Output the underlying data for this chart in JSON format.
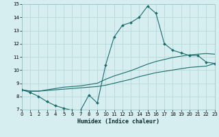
{
  "xlabel": "Humidex (Indice chaleur)",
  "bg_color": "#d6eef0",
  "grid_color": "#b8d8da",
  "line_color": "#1a6b6b",
  "xlim": [
    0,
    23
  ],
  "ylim": [
    7,
    15
  ],
  "yticks": [
    7,
    8,
    9,
    10,
    11,
    12,
    13,
    14,
    15
  ],
  "xticks": [
    0,
    1,
    2,
    3,
    4,
    5,
    6,
    7,
    8,
    9,
    10,
    11,
    12,
    13,
    14,
    15,
    16,
    17,
    18,
    19,
    20,
    21,
    22,
    23
  ],
  "line1_y": [
    8.5,
    8.3,
    8.0,
    7.6,
    7.3,
    7.1,
    6.95,
    6.95,
    8.1,
    7.5,
    10.4,
    12.5,
    13.4,
    13.6,
    14.0,
    14.85,
    14.3,
    12.0,
    11.5,
    11.3,
    11.1,
    11.1,
    10.6,
    10.5
  ],
  "line2_y": [
    8.5,
    8.4,
    8.4,
    8.45,
    8.5,
    8.55,
    8.6,
    8.65,
    8.7,
    8.75,
    8.85,
    9.0,
    9.15,
    9.3,
    9.5,
    9.65,
    9.8,
    9.9,
    10.0,
    10.1,
    10.2,
    10.25,
    10.3,
    10.5
  ],
  "line3_y": [
    8.5,
    8.4,
    8.4,
    8.5,
    8.6,
    8.7,
    8.75,
    8.8,
    8.9,
    9.0,
    9.3,
    9.55,
    9.75,
    9.95,
    10.2,
    10.45,
    10.65,
    10.8,
    10.95,
    11.05,
    11.15,
    11.2,
    11.25,
    11.2
  ]
}
